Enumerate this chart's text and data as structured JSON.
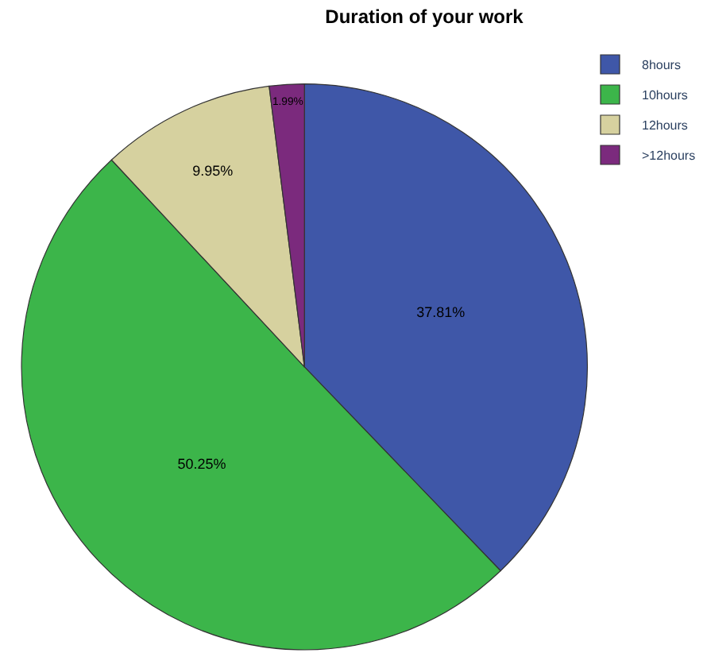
{
  "chart_data": {
    "type": "pie",
    "title": "Duration of your work",
    "categories": [
      "8hours",
      "10hours",
      "12hours",
      ">12hours"
    ],
    "values": [
      37.81,
      50.25,
      9.95,
      1.99
    ],
    "colors": [
      "#3f57a8",
      "#3cb54a",
      "#d6d19f",
      "#7b2a7d"
    ],
    "value_labels": [
      "37.81%",
      "50.25%",
      "9.95%",
      "1.99%"
    ],
    "legend": "top right"
  }
}
